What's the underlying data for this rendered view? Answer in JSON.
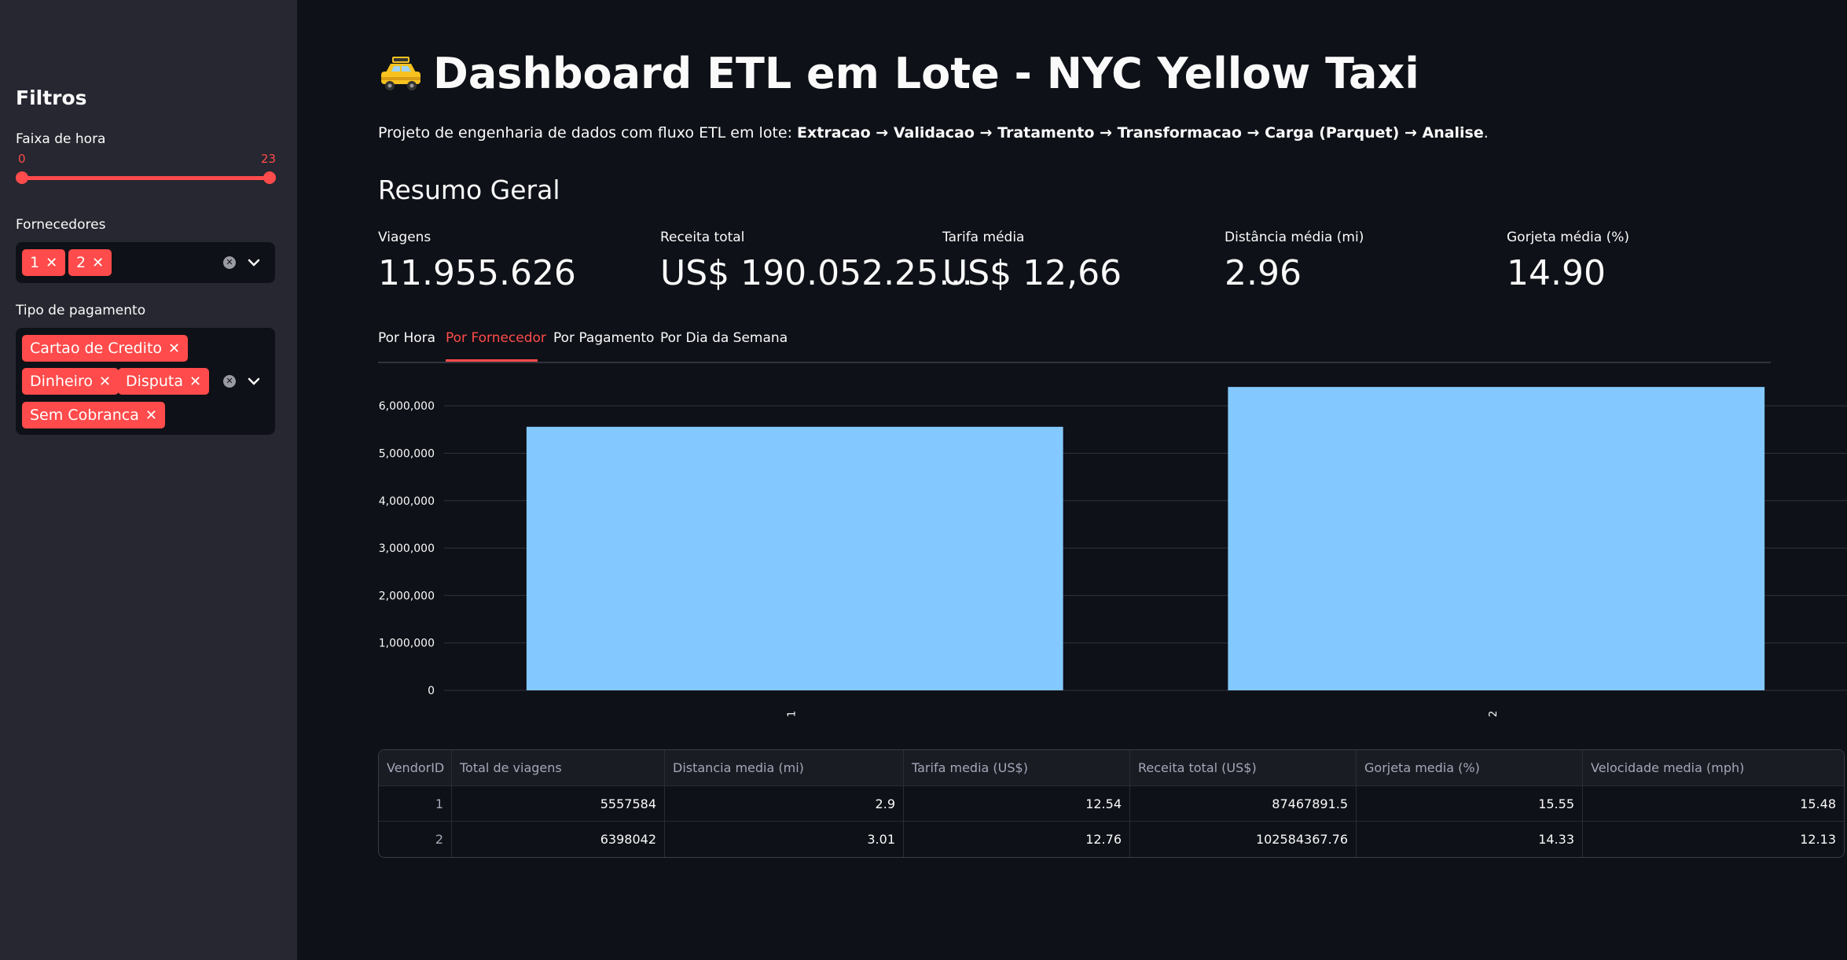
{
  "sidebar": {
    "title": "Filtros",
    "hour_range": {
      "label": "Faixa de hora",
      "min_label": "0",
      "max_label": "23",
      "low": 0,
      "high": 23
    },
    "vendors": {
      "label": "Fornecedores",
      "selected": [
        "1",
        "2"
      ]
    },
    "payment": {
      "label": "Tipo de pagamento",
      "selected": [
        "Cartao de Credito",
        "Dinheiro",
        "Disputa",
        "Sem Cobranca"
      ]
    }
  },
  "header": {
    "title": "Dashboard ETL em Lote - NYC Yellow Taxi",
    "subtitle_prefix": "Projeto de engenharia de dados com fluxo ETL em lote: ",
    "pipeline": [
      "Extracao",
      "Validacao",
      "Tratamento",
      "Transformacao",
      "Carga (Parquet)",
      "Analise"
    ],
    "arrow": " → ",
    "subtitle_suffix": "."
  },
  "summary": {
    "title": "Resumo Geral",
    "metrics": [
      {
        "label": "Viagens",
        "value": "11.955.626"
      },
      {
        "label": "Receita total",
        "value": "US$ 190.052.25…"
      },
      {
        "label": "Tarifa média",
        "value": "US$ 12,66"
      },
      {
        "label": "Distância média (mi)",
        "value": "2.96"
      },
      {
        "label": "Gorjeta média (%)",
        "value": "14.90"
      }
    ]
  },
  "tabs": [
    "Por Hora",
    "Por Fornecedor",
    "Por Pagamento",
    "Por Dia da Semana"
  ],
  "active_tab": "Por Fornecedor",
  "chart_data": {
    "type": "bar",
    "categories": [
      "1",
      "2"
    ],
    "values": [
      5557584,
      6398042
    ],
    "ylim": [
      0,
      6500000
    ],
    "yticks": [
      0,
      1000000,
      2000000,
      3000000,
      4000000,
      5000000,
      6000000
    ],
    "ytick_labels": [
      "0",
      "1,000,000",
      "2,000,000",
      "3,000,000",
      "4,000,000",
      "5,000,000",
      "6,000,000"
    ],
    "bar_color": "#83c9ff",
    "grid": true
  },
  "table": {
    "columns": [
      "VendorID",
      "Total de viagens",
      "Distancia media (mi)",
      "Tarifa media (US$)",
      "Receita total (US$)",
      "Gorjeta media (%)",
      "Velocidade media (mph)"
    ],
    "rows": [
      [
        "1",
        "5557584",
        "2.9",
        "12.54",
        "87467891.5",
        "15.55",
        "15.48"
      ],
      [
        "2",
        "6398042",
        "3.01",
        "12.76",
        "102584367.76",
        "14.33",
        "12.13"
      ]
    ]
  },
  "colors": {
    "accent": "#ff4b4b",
    "bar": "#83c9ff",
    "background": "#0e1117",
    "sidebar": "#262730"
  },
  "icons": {
    "title": "taxi-icon",
    "chip_remove": "close-icon",
    "clear": "clear-icon",
    "dropdown": "chevron-down-icon"
  }
}
